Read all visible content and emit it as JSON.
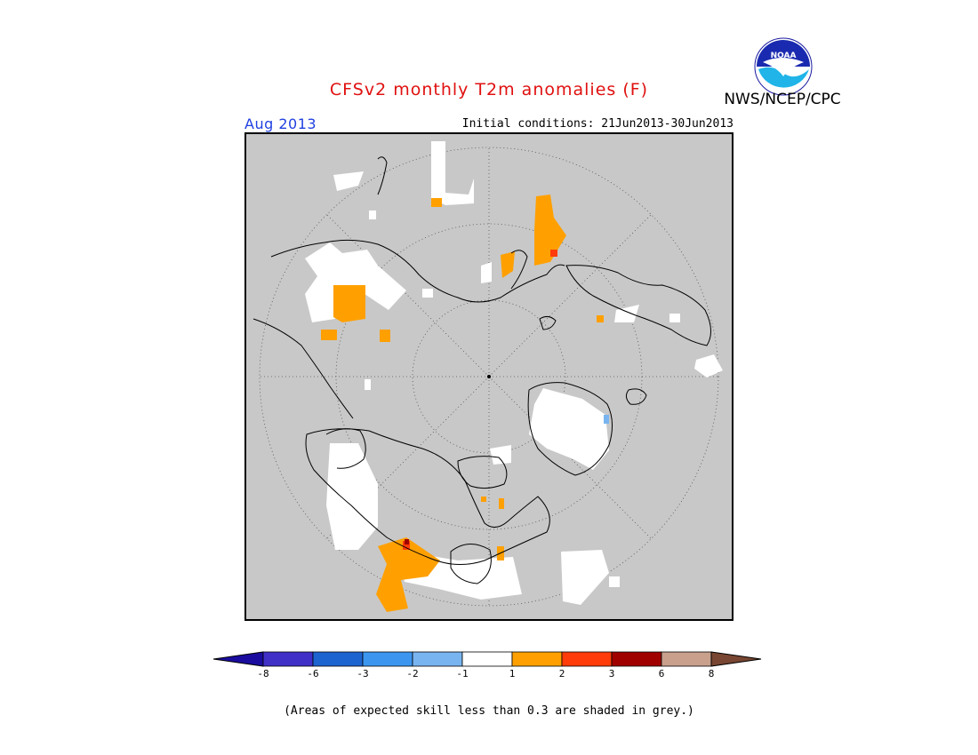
{
  "header": {
    "title": "CFSv2 monthly T2m anomalies (F)",
    "agency": "NWS/NCEP/CPC",
    "logo_text": "NOAA",
    "valid_month": "Aug 2013",
    "initial_conditions": "Initial conditions: 21Jun2013-30Jun2013"
  },
  "map": {
    "projection": "north-polar-stereographic",
    "background_color": "#c8c8c8",
    "coastline_color": "#000000",
    "graticule": "dotted"
  },
  "legend": {
    "colors": [
      "#1a0c9e",
      "#4030c8",
      "#1e64d0",
      "#3c96f0",
      "#78b4f0",
      "#ffffff",
      "#ffa000",
      "#ff3c0a",
      "#a00000",
      "#c8a08c",
      "#784632"
    ],
    "labels": [
      "-8",
      "-6",
      "-3",
      "-2",
      "-1",
      "1",
      "2",
      "3",
      "6",
      "8"
    ]
  },
  "footer": {
    "note": "(Areas of expected skill less than 0.3 are shaded in grey.)"
  }
}
